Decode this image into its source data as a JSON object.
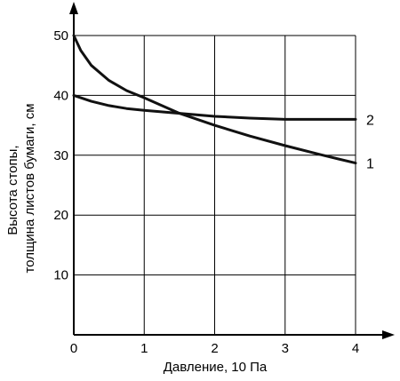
{
  "chart_data": {
    "type": "line",
    "xlabel": "Давление, 10 Па",
    "ylabel_lines": [
      "Высота стопы,",
      "толщина листов бумаги, см"
    ],
    "xlim": [
      0,
      4
    ],
    "ylim": [
      0,
      50
    ],
    "x_ticks": [
      0,
      1,
      2,
      3,
      4
    ],
    "y_ticks": [
      10,
      20,
      30,
      40,
      50
    ],
    "x_tick_labels": [
      "0",
      "1",
      "2",
      "3",
      "4"
    ],
    "y_tick_labels": [
      "10",
      "20",
      "30",
      "40",
      "50"
    ],
    "grid": true,
    "series": [
      {
        "name": "1",
        "color": "#111111",
        "x": [
          0,
          0.1,
          0.25,
          0.5,
          0.75,
          1.0,
          1.25,
          1.5,
          2.0,
          2.5,
          3.0,
          3.5,
          4.0
        ],
        "y": [
          50,
          47.5,
          45.0,
          42.5,
          40.8,
          39.6,
          38.3,
          37.0,
          35.0,
          33.2,
          31.6,
          30.1,
          28.7
        ]
      },
      {
        "name": "2",
        "color": "#111111",
        "x": [
          0,
          0.25,
          0.5,
          0.75,
          1.0,
          1.5,
          2.0,
          2.5,
          3.0,
          3.5,
          4.0
        ],
        "y": [
          40,
          39.0,
          38.3,
          37.8,
          37.5,
          37.0,
          36.5,
          36.2,
          36.0,
          36.0,
          36.0
        ]
      }
    ]
  }
}
